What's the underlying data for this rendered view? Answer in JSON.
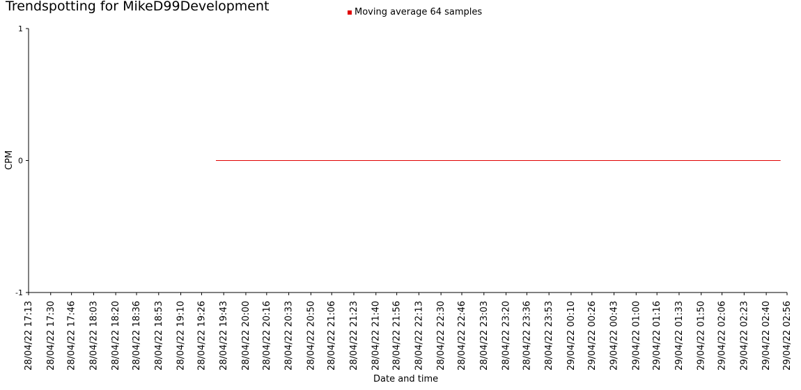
{
  "chart_data": {
    "type": "line",
    "title": "Trendspotting for MikeD99Development",
    "xlabel": "Date and time",
    "ylabel": "CPM",
    "ylim": [
      -1,
      1
    ],
    "yticks": [
      "1",
      "0",
      "-1"
    ],
    "grid": false,
    "legend_placement": "top-center",
    "xticks": [
      "28/04/22 17:13",
      "28/04/22 17:30",
      "28/04/22 17:46",
      "28/04/22 18:03",
      "28/04/22 18:20",
      "28/04/22 18:36",
      "28/04/22 18:53",
      "28/04/22 19:10",
      "28/04/22 19:26",
      "28/04/22 19:43",
      "28/04/22 20:00",
      "28/04/22 20:16",
      "28/04/22 20:33",
      "28/04/22 20:50",
      "28/04/22 21:06",
      "28/04/22 21:23",
      "28/04/22 21:40",
      "28/04/22 21:56",
      "28/04/22 22:13",
      "28/04/22 22:30",
      "28/04/22 22:46",
      "28/04/22 23:03",
      "28/04/22 23:20",
      "28/04/22 23:36",
      "28/04/22 23:53",
      "29/04/22 00:10",
      "29/04/22 00:26",
      "29/04/22 00:43",
      "29/04/22 01:00",
      "29/04/22 01:16",
      "29/04/22 01:33",
      "29/04/22 01:50",
      "29/04/22 02:06",
      "29/04/22 02:23",
      "29/04/22 02:40",
      "29/04/22 02:56"
    ],
    "series": [
      {
        "name": "Moving average 64 samples",
        "color": "#e00000",
        "x": [
          "28/04/22 19:37",
          "29/04/22 02:51"
        ],
        "values": [
          0,
          0
        ]
      }
    ]
  }
}
